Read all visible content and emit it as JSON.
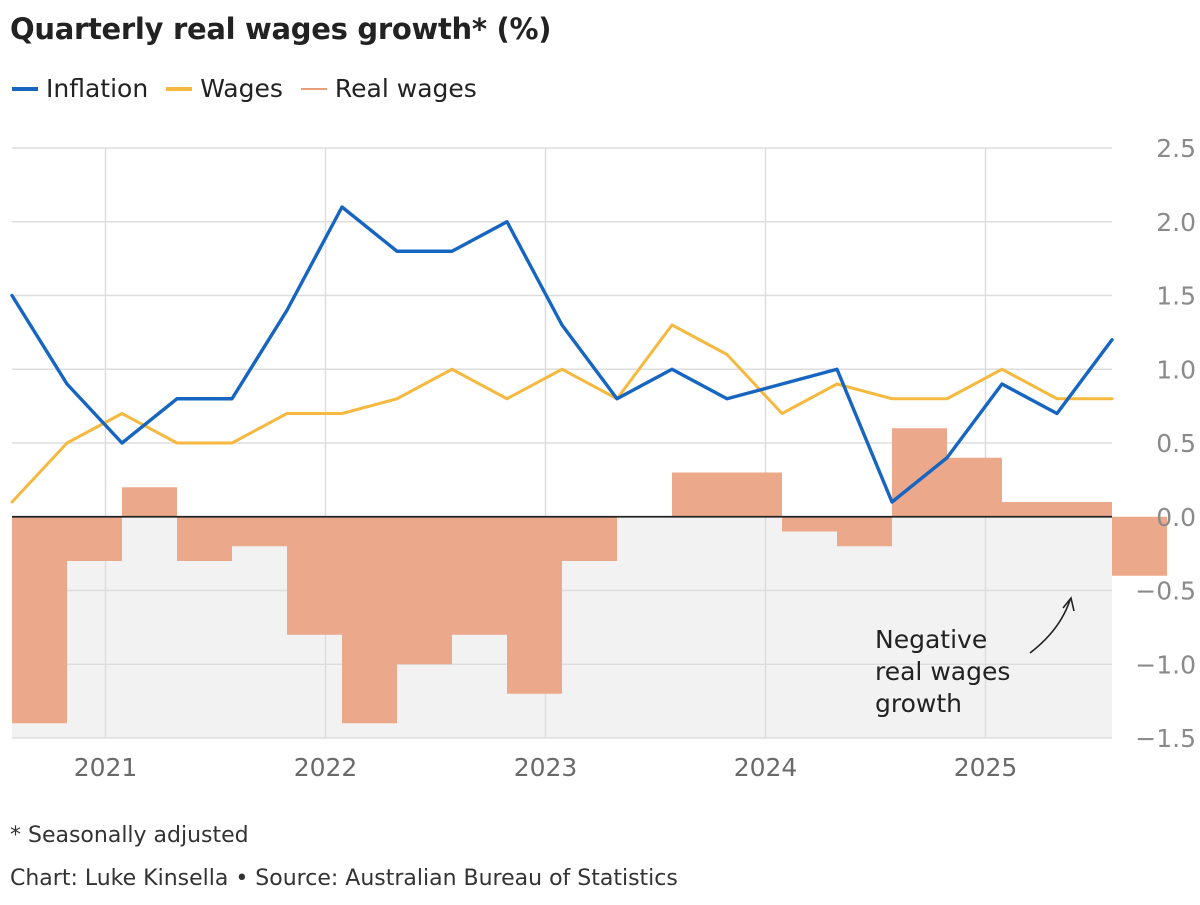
{
  "title": "Quarterly real wages growth* (%)",
  "legend": {
    "inflation": "Inflation",
    "wages": "Wages",
    "real_wages": "Real wages"
  },
  "footnote": "* Seasonally adjusted",
  "credit": "Chart: Luke Kinsella • Source: Australian Bureau of Statistics",
  "annotation": {
    "line1": "Negative",
    "line2": "real wages",
    "line3": "growth"
  },
  "colors": {
    "inflation": "#1665c1",
    "wages": "#f5b940",
    "real_wages": "#eba88a",
    "negative_band": "#f2f2f2"
  },
  "chart_data": {
    "type": "line",
    "title": "Quarterly real wages growth* (%)",
    "xlabel": "",
    "ylabel": "",
    "ylim": [
      -1.5,
      2.5
    ],
    "yticks": [
      2.5,
      2.0,
      1.5,
      1.0,
      0.5,
      0.0,
      -0.5,
      -1.0,
      -1.5
    ],
    "ytick_labels": [
      "2.5",
      "2.0",
      "1.5",
      "1.0",
      "0.5",
      "0.0",
      "−0.5",
      "−1.0",
      "−1.5"
    ],
    "year_labels": [
      "2021",
      "2022",
      "2023",
      "2024",
      "2025"
    ],
    "year_positions": [
      1,
      5,
      9,
      13,
      17
    ],
    "x": [
      -0.7,
      0.3,
      1.3,
      2.3,
      3.3,
      4.3,
      5.3,
      6.3,
      7.3,
      8.3,
      9.3,
      10.3,
      11.3,
      12.3,
      13.3,
      14.3,
      15.3,
      16.3,
      17.3,
      18.3,
      19.3
    ],
    "series": [
      {
        "name": "Inflation",
        "type": "line",
        "values": [
          1.5,
          0.9,
          0.5,
          0.8,
          0.8,
          1.4,
          2.1,
          1.8,
          1.8,
          2.0,
          1.3,
          0.8,
          1.0,
          0.8,
          0.9,
          1.0,
          0.1,
          0.4,
          0.9,
          0.7,
          1.2
        ]
      },
      {
        "name": "Wages",
        "type": "line",
        "values": [
          0.1,
          0.5,
          0.7,
          0.5,
          0.5,
          0.7,
          0.7,
          0.8,
          1.0,
          0.8,
          1.0,
          0.8,
          1.3,
          1.1,
          0.7,
          0.9,
          0.8,
          0.8,
          1.0,
          0.8,
          0.8
        ]
      },
      {
        "name": "Real wages",
        "type": "area",
        "values": [
          -1.4,
          -0.3,
          0.2,
          -0.3,
          -0.2,
          -0.8,
          -1.4,
          -1.0,
          -0.8,
          -1.2,
          -0.3,
          0.0,
          0.3,
          0.3,
          -0.1,
          -0.2,
          0.6,
          0.4,
          0.1,
          0.1,
          -0.4
        ]
      }
    ],
    "legend": [
      "Inflation",
      "Wages",
      "Real wages"
    ],
    "legend_position": "top-left",
    "grid": true
  }
}
